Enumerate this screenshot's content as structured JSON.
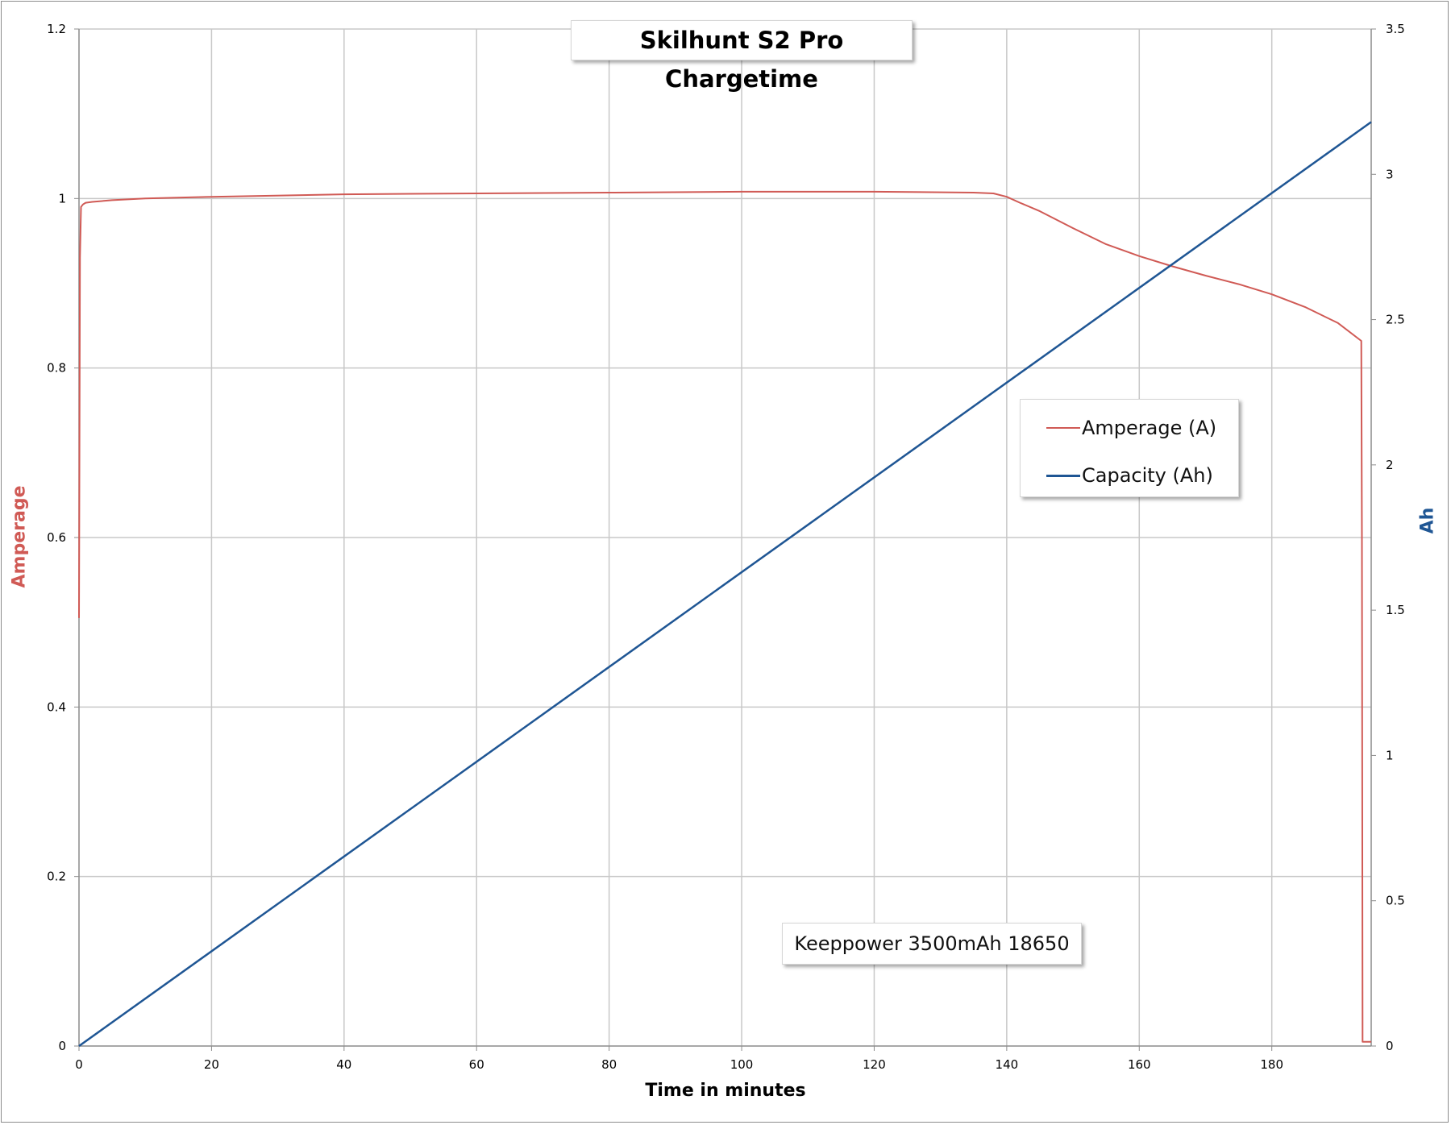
{
  "chart_data": {
    "type": "line",
    "title": "Skilhunt S2 Pro Chargetime",
    "xlabel": "Time in minutes",
    "ylabel_left": "Amperage",
    "ylabel_right": "Ah",
    "xlim": [
      0,
      195
    ],
    "ylim_left": [
      0,
      1.2
    ],
    "ylim_right": [
      0,
      3.5
    ],
    "x_ticks": [
      "0",
      "20",
      "40",
      "60",
      "80",
      "100",
      "120",
      "140",
      "160",
      "180"
    ],
    "y_left_ticks": [
      "0",
      "0.2",
      "0.4",
      "0.6",
      "0.8",
      "1",
      "1.2"
    ],
    "y_right_ticks": [
      "0",
      "0.5",
      "1",
      "1.5",
      "2",
      "2.5",
      "3",
      "3.5"
    ],
    "grid": true,
    "legend_position": "center-right",
    "series": [
      {
        "name": "Amperage (A)",
        "axis": "left",
        "color": "#d05a55",
        "x": [
          0,
          0.15,
          0.3,
          0.6,
          1,
          2,
          5,
          10,
          20,
          40,
          60,
          80,
          100,
          120,
          135,
          138,
          140,
          142,
          145,
          150,
          155,
          160,
          165,
          170,
          175,
          180,
          185,
          190,
          193.5,
          193.6,
          193.7,
          195
        ],
        "values": [
          0.505,
          0.93,
          0.99,
          0.993,
          0.995,
          0.996,
          0.998,
          1.0,
          1.002,
          1.005,
          1.006,
          1.007,
          1.008,
          1.008,
          1.007,
          1.006,
          1.002,
          0.995,
          0.985,
          0.965,
          0.946,
          0.932,
          0.92,
          0.909,
          0.899,
          0.887,
          0.872,
          0.853,
          0.832,
          0.6,
          0.005,
          0.005
        ]
      },
      {
        "name": "Capacity (Ah)",
        "axis": "right",
        "color": "#1f5694",
        "x": [
          0,
          195
        ],
        "values": [
          0,
          3.18
        ]
      }
    ],
    "annotations": [
      "Keeppower 3500mAh 18650"
    ]
  },
  "colors": {
    "amperage": "#d05a55",
    "capacity": "#1f5694",
    "grid": "#c8c8c8"
  }
}
